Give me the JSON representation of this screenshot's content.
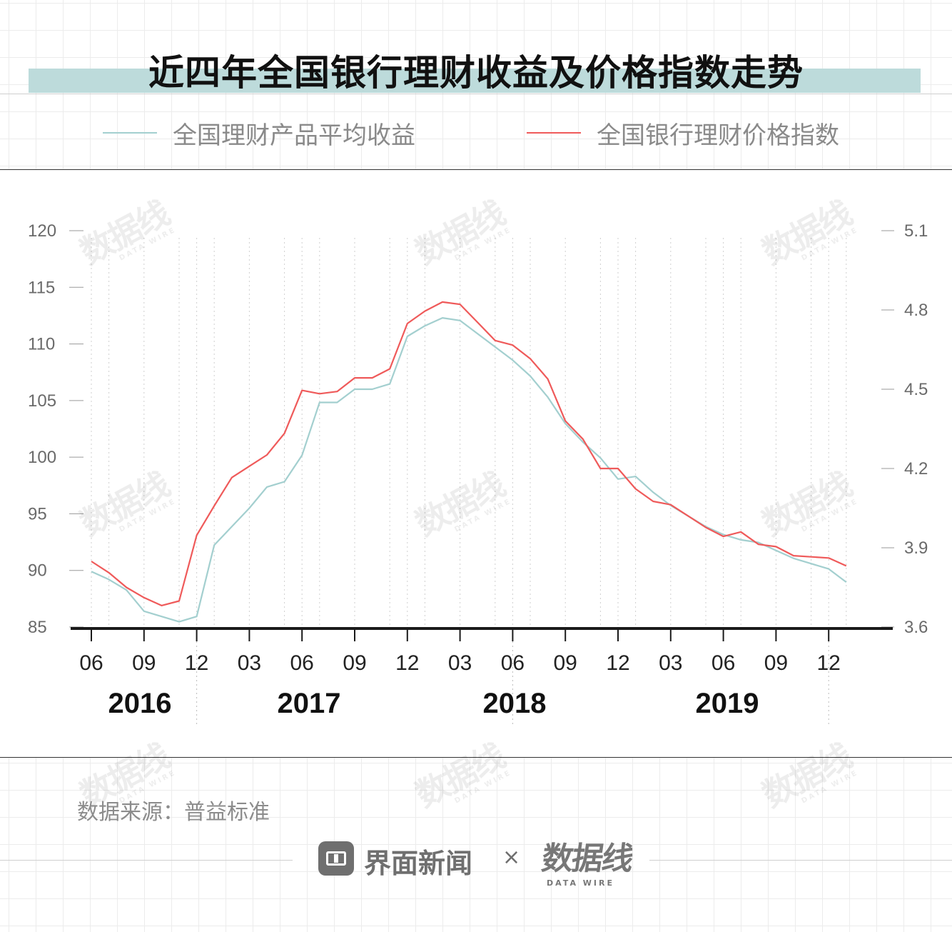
{
  "title": "近四年全国银行理财收益及价格指数走势",
  "legend": [
    {
      "label": "全国理财产品平均收益",
      "color": "#a3cfcf"
    },
    {
      "label": "全国银行理财价格指数",
      "color": "#ef5a5a"
    }
  ],
  "source": "数据来源：普益标准",
  "footer": {
    "publisher": "界面新闻",
    "times": "×",
    "brand": "数据线",
    "brand_sub": "DATA WIRE"
  },
  "watermark": {
    "text": "数据线",
    "sub": "DATA WIRE"
  },
  "chart_data": {
    "type": "line",
    "x": [
      "2016-06",
      "2016-07",
      "2016-08",
      "2016-09",
      "2016-10",
      "2016-11",
      "2016-12",
      "2017-01",
      "2017-02",
      "2017-03",
      "2017-04",
      "2017-05",
      "2017-06",
      "2017-07",
      "2017-08",
      "2017-09",
      "2017-10",
      "2017-11",
      "2017-12",
      "2018-01",
      "2018-02",
      "2018-03",
      "2018-04",
      "2018-05",
      "2018-06",
      "2018-07",
      "2018-08",
      "2018-09",
      "2018-10",
      "2018-11",
      "2018-12",
      "2019-01",
      "2019-02",
      "2019-03",
      "2019-04",
      "2019-05",
      "2019-06",
      "2019-07",
      "2019-08",
      "2019-09",
      "2019-10",
      "2019-11",
      "2019-12",
      "2020-01"
    ],
    "x_tick_labels": [
      "06",
      "09",
      "12",
      "03",
      "06",
      "09",
      "12",
      "03",
      "06",
      "09",
      "12",
      "03",
      "06",
      "09",
      "12"
    ],
    "year_labels": [
      "2016",
      "2017",
      "2018",
      "2019"
    ],
    "y_left": {
      "ticks": [
        "120",
        "115",
        "110",
        "105",
        "100",
        "95",
        "90",
        "85"
      ],
      "range": [
        85,
        120
      ]
    },
    "y_right": {
      "ticks": [
        "5.1",
        "4.8",
        "4.5",
        "4.2",
        "3.9",
        "3.6"
      ],
      "range": [
        3.6,
        5.1
      ]
    },
    "series": [
      {
        "name": "全国理财产品平均收益",
        "axis": "right",
        "color": "#a3cfcf",
        "values": [
          3.81,
          3.78,
          3.74,
          3.66,
          3.64,
          3.62,
          3.64,
          3.91,
          3.98,
          4.05,
          4.13,
          4.15,
          4.25,
          4.45,
          4.45,
          4.5,
          4.5,
          4.52,
          4.7,
          4.74,
          4.77,
          4.76,
          4.71,
          4.66,
          4.61,
          4.55,
          4.47,
          4.37,
          4.3,
          4.24,
          4.16,
          4.17,
          4.11,
          4.06,
          4.02,
          3.98,
          3.95,
          3.93,
          3.92,
          3.89,
          3.86,
          3.84,
          3.82,
          3.77
        ]
      },
      {
        "name": "全国银行理财价格指数",
        "axis": "left",
        "color": "#ef5a5a",
        "values": [
          90.8,
          89.8,
          88.5,
          87.6,
          86.9,
          87.3,
          93.1,
          95.7,
          98.2,
          99.2,
          100.2,
          102.1,
          105.9,
          105.6,
          105.8,
          107.0,
          107.0,
          107.8,
          111.8,
          112.9,
          113.7,
          113.5,
          111.9,
          110.3,
          109.9,
          108.7,
          106.9,
          103.2,
          101.6,
          99.0,
          99.0,
          97.2,
          96.1,
          95.8,
          94.8,
          93.8,
          93.0,
          93.4,
          92.3,
          92.1,
          91.3,
          91.2,
          91.1,
          90.4
        ]
      }
    ]
  }
}
